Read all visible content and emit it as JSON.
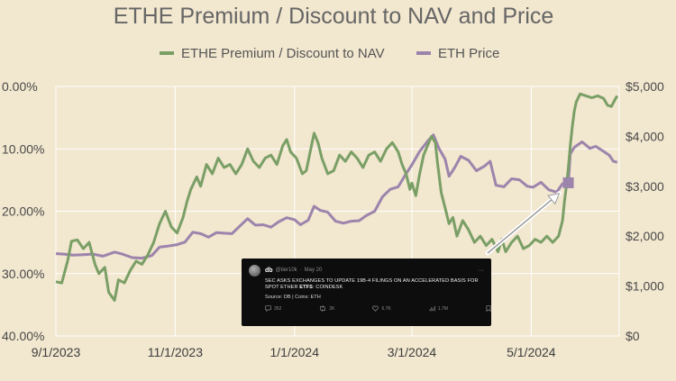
{
  "chart_data": {
    "type": "line",
    "title": "ETHE Premium / Discount to NAV and Price",
    "legend": {
      "placement": "top",
      "entries": [
        "ETHE Premium / Discount to NAV",
        "ETH Price"
      ]
    },
    "grid": true,
    "y_left": {
      "ticks": [
        "0.00%",
        "10.00%",
        "20.00%",
        "30.00%",
        "40.00%"
      ],
      "range": [
        0,
        40
      ],
      "inverted": true,
      "unit": "% discount"
    },
    "y_right": {
      "ticks": [
        "$5,000",
        "$4,000",
        "$3,000",
        "$2,000",
        "$1,000",
        "$0"
      ],
      "range": [
        0,
        5000
      ]
    },
    "x_axis": {
      "ticks": [
        "9/1/2023",
        "11/1/2023",
        "1/1/2024",
        "3/1/2024",
        "5/1/2024"
      ],
      "range": [
        "2023-09-01",
        "2024-06-15"
      ]
    },
    "series": [
      {
        "name": "ETHE Premium / Discount to NAV",
        "color": "#7a9f66",
        "axis": "left",
        "points": [
          [
            "2023-09-01",
            31.3
          ],
          [
            "2023-09-04",
            31.5
          ],
          [
            "2023-09-07",
            28.0
          ],
          [
            "2023-09-09",
            24.8
          ],
          [
            "2023-09-12",
            24.6
          ],
          [
            "2023-09-15",
            26.0
          ],
          [
            "2023-09-18",
            25.0
          ],
          [
            "2023-09-21",
            28.5
          ],
          [
            "2023-09-23",
            30.0
          ],
          [
            "2023-09-26",
            29.0
          ],
          [
            "2023-09-28",
            33.0
          ],
          [
            "2023-10-01",
            34.3
          ],
          [
            "2023-10-03",
            31.0
          ],
          [
            "2023-10-06",
            31.5
          ],
          [
            "2023-10-09",
            29.5
          ],
          [
            "2023-10-12",
            28.0
          ],
          [
            "2023-10-15",
            28.5
          ],
          [
            "2023-10-18",
            27.0
          ],
          [
            "2023-10-21",
            25.0
          ],
          [
            "2023-10-24",
            22.0
          ],
          [
            "2023-10-27",
            20.0
          ],
          [
            "2023-10-30",
            22.5
          ],
          [
            "2023-11-02",
            23.5
          ],
          [
            "2023-11-05",
            21.0
          ],
          [
            "2023-11-07",
            18.5
          ],
          [
            "2023-11-09",
            16.5
          ],
          [
            "2023-11-12",
            14.5
          ],
          [
            "2023-11-14",
            16.0
          ],
          [
            "2023-11-17",
            12.5
          ],
          [
            "2023-11-20",
            14.0
          ],
          [
            "2023-11-23",
            11.5
          ],
          [
            "2023-11-26",
            13.0
          ],
          [
            "2023-11-29",
            12.5
          ],
          [
            "2023-12-02",
            14.0
          ],
          [
            "2023-12-05",
            12.5
          ],
          [
            "2023-12-08",
            10.0
          ],
          [
            "2023-12-11",
            12.0
          ],
          [
            "2023-12-14",
            13.0
          ],
          [
            "2023-12-17",
            11.5
          ],
          [
            "2023-12-20",
            11.0
          ],
          [
            "2023-12-23",
            12.5
          ],
          [
            "2023-12-26",
            9.5
          ],
          [
            "2023-12-28",
            8.5
          ],
          [
            "2023-12-30",
            10.5
          ],
          [
            "2024-01-02",
            11.5
          ],
          [
            "2024-01-05",
            14.0
          ],
          [
            "2024-01-07",
            13.5
          ],
          [
            "2024-01-09",
            10.5
          ],
          [
            "2024-01-11",
            7.5
          ],
          [
            "2024-01-13",
            9.0
          ],
          [
            "2024-01-15",
            11.5
          ],
          [
            "2024-01-18",
            14.0
          ],
          [
            "2024-01-21",
            13.5
          ],
          [
            "2024-01-24",
            11.0
          ],
          [
            "2024-01-27",
            12.0
          ],
          [
            "2024-01-30",
            10.5
          ],
          [
            "2024-02-02",
            11.5
          ],
          [
            "2024-02-05",
            13.0
          ],
          [
            "2024-02-08",
            11.0
          ],
          [
            "2024-02-11",
            10.5
          ],
          [
            "2024-02-14",
            12.0
          ],
          [
            "2024-02-17",
            10.0
          ],
          [
            "2024-02-20",
            9.0
          ],
          [
            "2024-02-23",
            10.5
          ],
          [
            "2024-02-25",
            12.5
          ],
          [
            "2024-02-27",
            14.0
          ],
          [
            "2024-02-29",
            16.5
          ],
          [
            "2024-03-01",
            15.5
          ],
          [
            "2024-03-03",
            17.5
          ],
          [
            "2024-03-05",
            14.0
          ],
          [
            "2024-03-07",
            11.0
          ],
          [
            "2024-03-09",
            9.5
          ],
          [
            "2024-03-11",
            8.0
          ],
          [
            "2024-03-13",
            9.0
          ],
          [
            "2024-03-14",
            12.0
          ],
          [
            "2024-03-16",
            17.0
          ],
          [
            "2024-03-18",
            19.5
          ],
          [
            "2024-03-20",
            22.0
          ],
          [
            "2024-03-22",
            21.0
          ],
          [
            "2024-03-24",
            24.0
          ],
          [
            "2024-03-27",
            21.5
          ],
          [
            "2024-03-30",
            23.0
          ],
          [
            "2024-04-02",
            25.0
          ],
          [
            "2024-04-05",
            24.0
          ],
          [
            "2024-04-08",
            25.5
          ],
          [
            "2024-04-11",
            24.5
          ],
          [
            "2024-04-14",
            26.5
          ],
          [
            "2024-04-16",
            24.5
          ],
          [
            "2024-04-18",
            26.5
          ],
          [
            "2024-04-21",
            25.0
          ],
          [
            "2024-04-24",
            24.0
          ],
          [
            "2024-04-27",
            26.0
          ],
          [
            "2024-04-30",
            25.5
          ],
          [
            "2024-05-03",
            24.5
          ],
          [
            "2024-05-06",
            25.0
          ],
          [
            "2024-05-09",
            24.0
          ],
          [
            "2024-05-12",
            25.0
          ],
          [
            "2024-05-15",
            24.0
          ],
          [
            "2024-05-17",
            21.5
          ],
          [
            "2024-05-18",
            18.5
          ],
          [
            "2024-05-19",
            16.0
          ],
          [
            "2024-05-20",
            13.0
          ],
          [
            "2024-05-21",
            9.5
          ],
          [
            "2024-05-22",
            6.5
          ],
          [
            "2024-05-23",
            4.0
          ],
          [
            "2024-05-24",
            2.5
          ],
          [
            "2024-05-26",
            1.2
          ],
          [
            "2024-05-29",
            1.5
          ],
          [
            "2024-06-01",
            1.8
          ],
          [
            "2024-06-04",
            1.5
          ],
          [
            "2024-06-07",
            1.9
          ],
          [
            "2024-06-09",
            3.0
          ],
          [
            "2024-06-11",
            3.2
          ],
          [
            "2024-06-13",
            2.0
          ],
          [
            "2024-06-14",
            1.5
          ]
        ]
      },
      {
        "name": "ETH Price",
        "color": "#9c84ac",
        "axis": "right",
        "points": [
          [
            "2023-09-01",
            1650
          ],
          [
            "2023-09-05",
            1640
          ],
          [
            "2023-09-10",
            1620
          ],
          [
            "2023-09-15",
            1630
          ],
          [
            "2023-09-20",
            1640
          ],
          [
            "2023-09-25",
            1600
          ],
          [
            "2023-10-01",
            1680
          ],
          [
            "2023-10-05",
            1640
          ],
          [
            "2023-10-10",
            1570
          ],
          [
            "2023-10-15",
            1560
          ],
          [
            "2023-10-20",
            1610
          ],
          [
            "2023-10-24",
            1780
          ],
          [
            "2023-10-28",
            1800
          ],
          [
            "2023-11-02",
            1830
          ],
          [
            "2023-11-06",
            1880
          ],
          [
            "2023-11-10",
            2080
          ],
          [
            "2023-11-14",
            2050
          ],
          [
            "2023-11-18",
            1980
          ],
          [
            "2023-11-22",
            2070
          ],
          [
            "2023-11-26",
            2060
          ],
          [
            "2023-11-30",
            2050
          ],
          [
            "2023-12-04",
            2200
          ],
          [
            "2023-12-08",
            2350
          ],
          [
            "2023-12-12",
            2220
          ],
          [
            "2023-12-16",
            2230
          ],
          [
            "2023-12-20",
            2180
          ],
          [
            "2023-12-24",
            2290
          ],
          [
            "2023-12-28",
            2370
          ],
          [
            "2024-01-01",
            2330
          ],
          [
            "2024-01-04",
            2230
          ],
          [
            "2024-01-08",
            2320
          ],
          [
            "2024-01-11",
            2600
          ],
          [
            "2024-01-14",
            2520
          ],
          [
            "2024-01-18",
            2480
          ],
          [
            "2024-01-22",
            2300
          ],
          [
            "2024-01-26",
            2260
          ],
          [
            "2024-01-30",
            2300
          ],
          [
            "2024-02-03",
            2310
          ],
          [
            "2024-02-07",
            2420
          ],
          [
            "2024-02-11",
            2500
          ],
          [
            "2024-02-15",
            2790
          ],
          [
            "2024-02-19",
            2940
          ],
          [
            "2024-02-23",
            2990
          ],
          [
            "2024-02-27",
            3250
          ],
          [
            "2024-03-01",
            3430
          ],
          [
            "2024-03-05",
            3700
          ],
          [
            "2024-03-09",
            3900
          ],
          [
            "2024-03-12",
            4030
          ],
          [
            "2024-03-15",
            3750
          ],
          [
            "2024-03-18",
            3540
          ],
          [
            "2024-03-20",
            3200
          ],
          [
            "2024-03-23",
            3380
          ],
          [
            "2024-03-26",
            3600
          ],
          [
            "2024-03-30",
            3520
          ],
          [
            "2024-04-03",
            3310
          ],
          [
            "2024-04-07",
            3400
          ],
          [
            "2024-04-10",
            3500
          ],
          [
            "2024-04-13",
            3020
          ],
          [
            "2024-04-17",
            2990
          ],
          [
            "2024-04-21",
            3150
          ],
          [
            "2024-04-25",
            3130
          ],
          [
            "2024-04-29",
            3000
          ],
          [
            "2024-05-02",
            2980
          ],
          [
            "2024-05-06",
            3080
          ],
          [
            "2024-05-10",
            2930
          ],
          [
            "2024-05-14",
            2880
          ],
          [
            "2024-05-17",
            3050
          ],
          [
            "2024-05-20",
            3070
          ],
          [
            "2024-05-21",
            3650
          ],
          [
            "2024-05-23",
            3780
          ],
          [
            "2024-05-27",
            3890
          ],
          [
            "2024-05-31",
            3760
          ],
          [
            "2024-06-03",
            3800
          ],
          [
            "2024-06-07",
            3700
          ],
          [
            "2024-06-10",
            3620
          ],
          [
            "2024-06-12",
            3500
          ],
          [
            "2024-06-14",
            3480
          ]
        ]
      }
    ],
    "annotations": [
      {
        "type": "marker",
        "series": "ETH Price",
        "date": "2024-05-20",
        "value": 3070,
        "color": "#9c84ac"
      },
      {
        "type": "arrow",
        "from": "tweet",
        "to_date": "2024-05-19",
        "to_value": 3000
      }
    ]
  },
  "tweet": {
    "name": "db",
    "handle": "@tier10k",
    "separator": "·",
    "date": "May 20",
    "more_icon": "more-dots-icon",
    "body_prefix": "SEC ASKS EXCHANGES TO UPDATE 19B-4 FILINGS ON AN ACCELERATED BASIS FOR SPOT ETHER ",
    "body_highlight": "ETFS",
    "body_suffix": ": COINDESK",
    "source": "Source: DB | Coins: ETH",
    "actions": [
      {
        "icon": "reply-icon",
        "count": "352"
      },
      {
        "icon": "retweet-icon",
        "count": "2K"
      },
      {
        "icon": "like-icon",
        "count": "6.7K"
      },
      {
        "icon": "views-icon",
        "count": "1.7M"
      },
      {
        "icon": "bookmark-icon",
        "count": ""
      },
      {
        "icon": "share-icon",
        "count": ""
      }
    ]
  }
}
